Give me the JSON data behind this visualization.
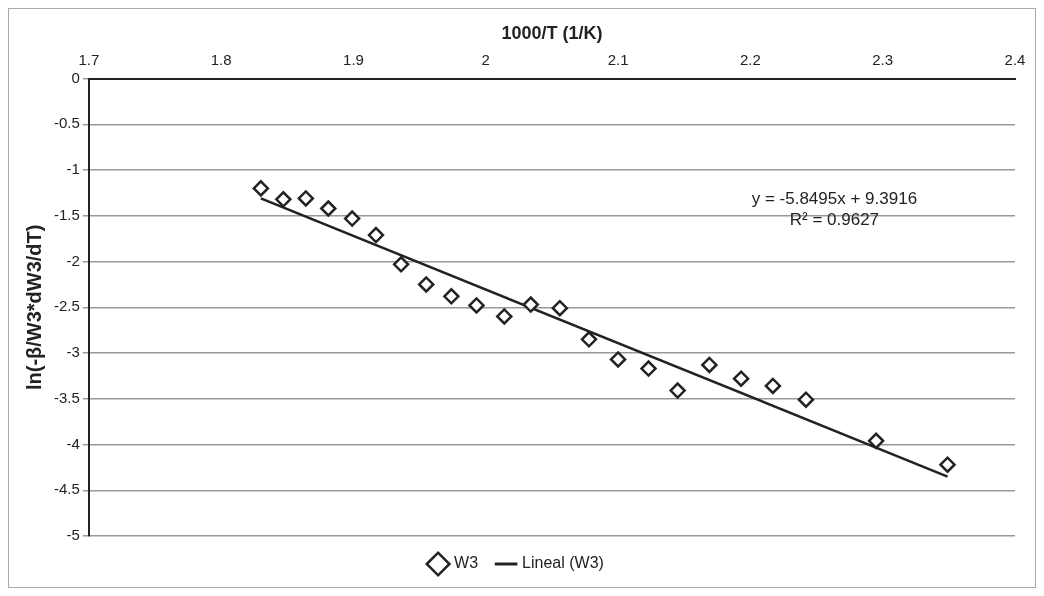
{
  "chart_data": {
    "type": "scatter",
    "xlabel": "1000/T (1/K)",
    "ylabel": "ln(-β/W3*dW3/dT)",
    "xlim": [
      1.7,
      2.4
    ],
    "xticks": [
      1.7,
      1.8,
      1.9,
      2,
      2.1,
      2.2,
      2.3,
      2.4
    ],
    "ylim": [
      -5,
      0
    ],
    "yticks": [
      0,
      -0.5,
      -1,
      -1.5,
      -2,
      -2.5,
      -3,
      -3.5,
      -4,
      -4.5,
      -5
    ],
    "grid": "y",
    "legend": "bottom",
    "marker": "diamond",
    "annotations": [
      "y = -5.8495x + 9.3916",
      "R² = 0.9627"
    ],
    "series": [
      {
        "name": "W3",
        "type": "scatter",
        "color": "#222222",
        "x": [
          1.83,
          1.847,
          1.864,
          1.881,
          1.899,
          1.917,
          1.936,
          1.955,
          1.974,
          1.993,
          2.014,
          2.034,
          2.056,
          2.078,
          2.1,
          2.123,
          2.145,
          2.169,
          2.193,
          2.217,
          2.242,
          2.295,
          2.349
        ],
        "values": [
          -1.2,
          -1.32,
          -1.31,
          -1.42,
          -1.53,
          -1.71,
          -2.03,
          -2.25,
          -2.38,
          -2.48,
          -2.6,
          -2.47,
          -2.51,
          -2.85,
          -3.07,
          -3.17,
          -3.41,
          -3.13,
          -3.28,
          -3.36,
          -3.51,
          -3.96,
          -4.22
        ]
      },
      {
        "name": "Lineal (W3)",
        "type": "line",
        "color": "#222222",
        "line_style": "solid",
        "marker": "none",
        "x": [
          1.83,
          2.349
        ],
        "values": [
          -1.31,
          -4.35
        ]
      }
    ]
  }
}
